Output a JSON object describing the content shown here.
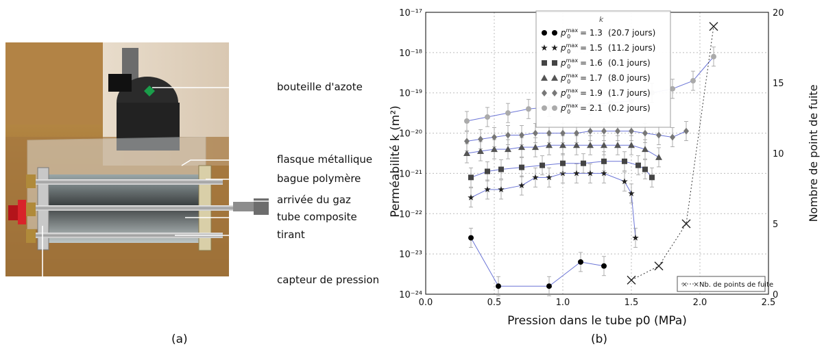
{
  "panel_a": {
    "callouts": [
      "bouteille d'azote",
      "flasque métallique",
      "bague polymère",
      "arrivée du gaz",
      "tube composite",
      "tirant",
      "capteur de pression"
    ],
    "sublabel": "(a)"
  },
  "panel_b": {
    "sublabel": "(b)",
    "chart_data": {
      "type": "scatter",
      "xlabel": "Pression dans le tube p0 (MPa)",
      "ylabel_left": "Perméabilité k (m²)",
      "ylabel_right": "Nombre de point de fuite",
      "xlim": [
        0.0,
        2.5
      ],
      "ylim_left_log10": [
        -24,
        -17
      ],
      "ylim_right": [
        0,
        20
      ],
      "x_ticks": [
        "0.0",
        "0.5",
        "1.0",
        "1.5",
        "2.0",
        "2.5"
      ],
      "y_left_ticks": [
        "10⁻¹⁷",
        "10⁻¹⁸",
        "10⁻¹⁹",
        "10⁻²⁰",
        "10⁻²¹",
        "10⁻²²",
        "10⁻²³",
        "10⁻²⁴"
      ],
      "y_right_ticks": [
        "0",
        "5",
        "10",
        "15",
        "20"
      ],
      "grid": true,
      "legend_title": "k",
      "legend_placement": "top-center",
      "series": [
        {
          "name": "p0max = 1.3   (20.7 jours)",
          "marker": "circle-black",
          "color": "#000000",
          "x": [
            0.33,
            0.53,
            0.9,
            1.13,
            1.3
          ],
          "log10k": [
            -22.6,
            -23.8,
            -23.8,
            -23.2,
            -23.3
          ]
        },
        {
          "name": "p0max = 1.5   (11.2 jours)",
          "marker": "star",
          "color": "#222222",
          "x": [
            0.33,
            0.45,
            0.55,
            0.7,
            0.8,
            0.9,
            1.0,
            1.1,
            1.2,
            1.3,
            1.45,
            1.5,
            1.53
          ],
          "log10k": [
            -21.6,
            -21.4,
            -21.4,
            -21.3,
            -21.1,
            -21.1,
            -21.0,
            -21.0,
            -21.0,
            -21.0,
            -21.2,
            -21.5,
            -22.6
          ]
        },
        {
          "name": "p0max = 1.6   (0.1 jours)",
          "marker": "square",
          "color": "#444444",
          "x": [
            0.33,
            0.45,
            0.55,
            0.7,
            0.85,
            1.0,
            1.15,
            1.3,
            1.45,
            1.55,
            1.6,
            1.65
          ],
          "log10k": [
            -21.1,
            -20.95,
            -20.9,
            -20.85,
            -20.8,
            -20.75,
            -20.75,
            -20.7,
            -20.7,
            -20.8,
            -20.9,
            -21.1
          ]
        },
        {
          "name": "p0max = 1.7   (8.0 jours)",
          "marker": "triangle",
          "color": "#555555",
          "x": [
            0.3,
            0.4,
            0.5,
            0.6,
            0.7,
            0.8,
            0.9,
            1.0,
            1.1,
            1.2,
            1.3,
            1.4,
            1.5,
            1.6,
            1.7
          ],
          "log10k": [
            -20.5,
            -20.45,
            -20.4,
            -20.4,
            -20.35,
            -20.35,
            -20.3,
            -20.3,
            -20.3,
            -20.3,
            -20.3,
            -20.3,
            -20.3,
            -20.4,
            -20.6
          ]
        },
        {
          "name": "p0max = 1.9   (1.7 jours)",
          "marker": "diamond",
          "color": "#777777",
          "x": [
            0.3,
            0.4,
            0.5,
            0.6,
            0.7,
            0.8,
            0.9,
            1.0,
            1.1,
            1.2,
            1.3,
            1.4,
            1.5,
            1.6,
            1.7,
            1.8,
            1.9
          ],
          "log10k": [
            -20.2,
            -20.15,
            -20.1,
            -20.05,
            -20.05,
            -20.0,
            -20.0,
            -20.0,
            -20.0,
            -19.95,
            -19.95,
            -19.95,
            -19.95,
            -20.0,
            -20.05,
            -20.1,
            -19.95
          ]
        },
        {
          "name": "p0max = 2.1   (0.2 jours)",
          "marker": "circle-gray",
          "color": "#aaaaaa",
          "x": [
            0.3,
            0.45,
            0.6,
            0.75,
            0.9,
            1.05,
            1.2,
            1.35,
            1.5,
            1.65,
            1.8,
            1.95,
            2.1
          ],
          "log10k": [
            -19.7,
            -19.6,
            -19.5,
            -19.4,
            -19.35,
            -19.3,
            -19.3,
            -19.25,
            -19.2,
            -19.0,
            -18.9,
            -18.7,
            -18.1
          ]
        },
        {
          "name": "Nb. de points de fuite",
          "marker": "x",
          "axis": "right",
          "color": "#222222",
          "x": [
            1.5,
            1.7,
            1.9,
            2.1
          ],
          "values": [
            1,
            2,
            5,
            19
          ]
        }
      ],
      "legend_entries": [
        {
          "prefix": "p",
          "sup": "max",
          "sub": "0",
          "value": " = 1.3",
          "days": "(20.7 jours)"
        },
        {
          "prefix": "p",
          "sup": "max",
          "sub": "0",
          "value": " = 1.5",
          "days": "(11.2 jours)"
        },
        {
          "prefix": "p",
          "sup": "max",
          "sub": "0",
          "value": " = 1.6",
          "days": "(0.1 jours)"
        },
        {
          "prefix": "p",
          "sup": "max",
          "sub": "0",
          "value": " = 1.7",
          "days": "(8.0 jours)"
        },
        {
          "prefix": "p",
          "sup": "max",
          "sub": "0",
          "value": " = 1.9",
          "days": "(1.7 jours)"
        },
        {
          "prefix": "p",
          "sup": "max",
          "sub": "0",
          "value": " = 2.1",
          "days": "(0.2 jours)"
        }
      ],
      "fuite_legend": "Nb. de points de fuite"
    }
  }
}
